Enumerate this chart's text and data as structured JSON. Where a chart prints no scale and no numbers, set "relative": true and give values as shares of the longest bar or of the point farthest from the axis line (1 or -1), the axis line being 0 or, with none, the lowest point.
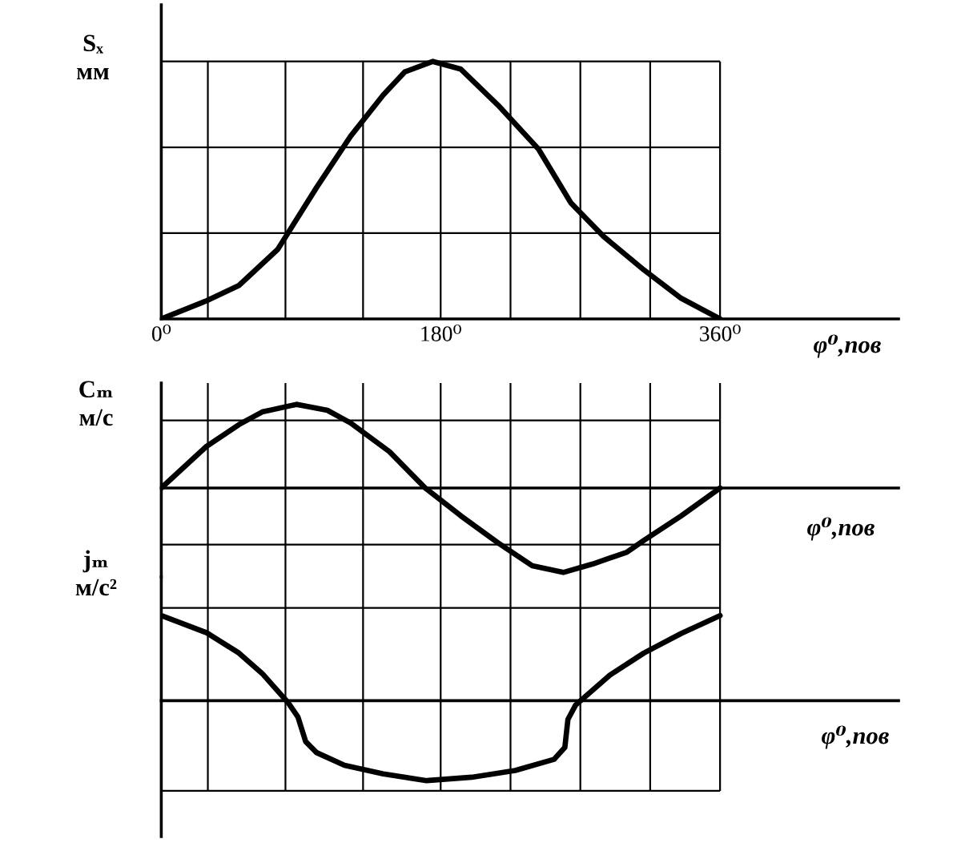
{
  "chart_data": [
    {
      "type": "line",
      "relative": true,
      "ylabel": "Sₓ\nмм",
      "xlabel": "φ⁰,пов",
      "xlim": [
        0,
        475
      ],
      "xticks": [
        {
          "value": 0,
          "label": "0⁰"
        },
        {
          "value": 30,
          "label": null
        },
        {
          "value": 80,
          "label": null
        },
        {
          "value": 130,
          "label": null
        },
        {
          "value": 180,
          "label": "180⁰"
        },
        {
          "value": 225,
          "label": null
        },
        {
          "value": 270,
          "label": null
        },
        {
          "value": 315,
          "label": null
        },
        {
          "value": 360,
          "label": "360⁰"
        }
      ],
      "grid": true,
      "x": [
        0,
        29,
        50,
        75,
        100,
        122,
        143,
        157,
        175,
        193,
        217,
        243,
        264,
        285,
        311,
        335,
        360
      ],
      "series": [
        {
          "color": "#000000",
          "values": [
            0,
            0.07,
            0.13,
            0.27,
            0.51,
            0.71,
            0.87,
            0.96,
            1,
            0.97,
            0.83,
            0.66,
            0.45,
            0.32,
            0.19,
            0.08,
            0
          ]
        }
      ]
    },
    {
      "type": "line",
      "relative": true,
      "ylabel": "Cₘ\nм/с",
      "xlabel": "φ⁰,пов",
      "xlim": [
        0,
        475
      ],
      "xticks": [
        0,
        30,
        80,
        130,
        180,
        225,
        270,
        315,
        360
      ],
      "grid": true,
      "tick_labels": false,
      "x": [
        0,
        29,
        50,
        65,
        87,
        107,
        122,
        147,
        170,
        193,
        217,
        239,
        259,
        278,
        300,
        311,
        335,
        360
      ],
      "series": [
        {
          "color": "#000000",
          "values": [
            0,
            0.49,
            0.75,
            0.9,
            0.99,
            0.92,
            0.77,
            0.43,
            0,
            -0.33,
            -0.65,
            -0.92,
            -1,
            -0.9,
            -0.76,
            -0.62,
            -0.33,
            0
          ]
        }
      ]
    },
    {
      "type": "line",
      "relative": true,
      "ylabel": "jₘ\nм/c²",
      "xlabel": "φ⁰,пов",
      "xlim": [
        0,
        475
      ],
      "xticks": [
        0,
        30,
        80,
        130,
        180,
        225,
        270,
        315,
        360
      ],
      "grid": true,
      "tick_labels": false,
      "x": [
        0,
        29,
        50,
        65,
        82,
        88,
        93,
        100,
        118,
        143,
        171,
        200,
        228,
        253,
        260,
        262,
        267,
        289,
        311,
        335,
        360
      ],
      "series": [
        {
          "color": "#000000",
          "values": [
            1,
            0.8,
            0.56,
            0.32,
            -0.03,
            -0.19,
            -0.48,
            -0.61,
            -0.76,
            -0.86,
            -0.94,
            -0.9,
            -0.82,
            -0.69,
            -0.55,
            -0.22,
            -0.05,
            0.3,
            0.56,
            0.79,
            1
          ]
        }
      ]
    }
  ]
}
